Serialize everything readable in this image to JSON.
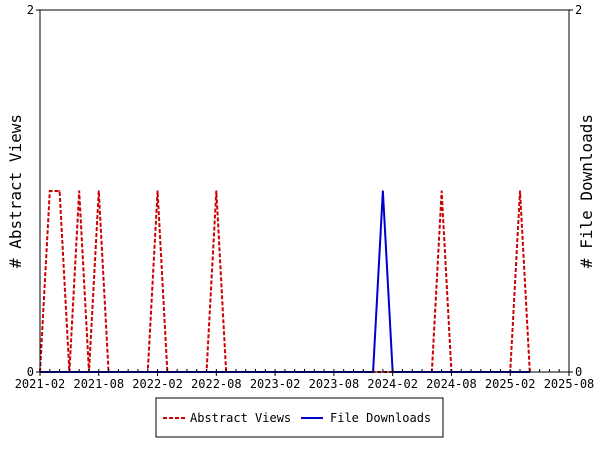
{
  "chart_data": {
    "type": "line",
    "ylabel_left": "# Abstract Views",
    "ylabel_right": "# File Downloads",
    "ylim": [
      0,
      2
    ],
    "y2lim": [
      0,
      2
    ],
    "yticks": [
      "0",
      "2"
    ],
    "y2ticks": [
      "0",
      "2"
    ],
    "xlim": [
      "2021-02",
      "2025-08"
    ],
    "xticks": [
      "2021-02",
      "2021-08",
      "2022-02",
      "2022-08",
      "2023-02",
      "2023-08",
      "2024-02",
      "2024-08",
      "2025-02",
      "2025-08"
    ],
    "legend_position": "bottom",
    "grid": false,
    "series": [
      {
        "name": "Abstract Views",
        "axis": "left",
        "color": "#cc0000",
        "style": "dashed",
        "points": [
          [
            "2021-02",
            0
          ],
          [
            "2021-03",
            1
          ],
          [
            "2021-04",
            1
          ],
          [
            "2021-05",
            0
          ],
          [
            "2021-06",
            1
          ],
          [
            "2021-07",
            0
          ],
          [
            "2021-08",
            1
          ],
          [
            "2021-09",
            0
          ],
          [
            "2022-01",
            0
          ],
          [
            "2022-02",
            1
          ],
          [
            "2022-03",
            0
          ],
          [
            "2022-07",
            0
          ],
          [
            "2022-08",
            1
          ],
          [
            "2022-09",
            0
          ],
          [
            "2024-06",
            0
          ],
          [
            "2024-07",
            1
          ],
          [
            "2024-08",
            0
          ],
          [
            "2025-02",
            0
          ],
          [
            "2025-03",
            1
          ],
          [
            "2025-04",
            0
          ]
        ]
      },
      {
        "name": "File Downloads",
        "axis": "right",
        "color": "#0000cc",
        "style": "solid",
        "points": [
          [
            "2021-02",
            0
          ],
          [
            "2023-12",
            0
          ],
          [
            "2024-01",
            1
          ],
          [
            "2024-02",
            0
          ],
          [
            "2025-04",
            0
          ]
        ]
      }
    ]
  }
}
